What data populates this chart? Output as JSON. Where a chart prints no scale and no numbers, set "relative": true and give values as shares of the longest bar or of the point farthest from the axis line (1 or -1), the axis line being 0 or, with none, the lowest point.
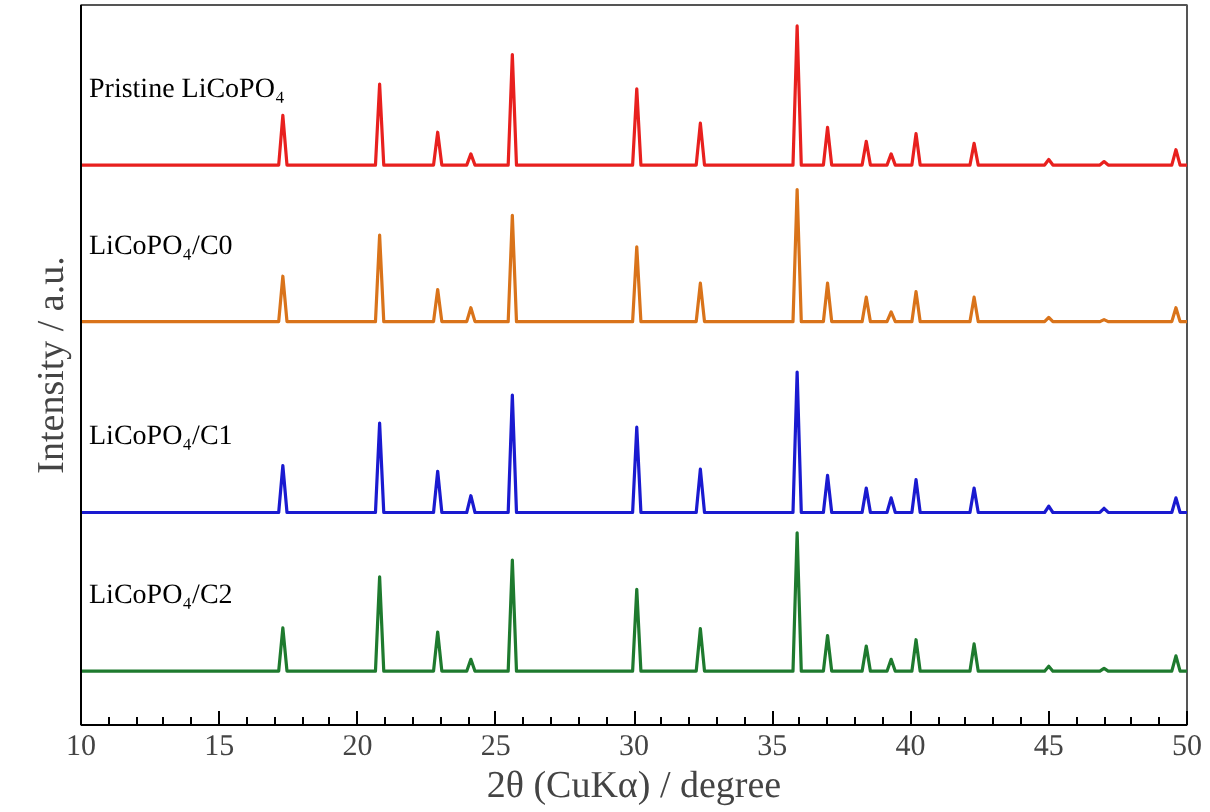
{
  "chart_data": {
    "type": "line",
    "relative": true,
    "xlabel": "2θ (CuKα) / degree",
    "ylabel": "Intensity / a.u.",
    "xlim": [
      10,
      50
    ],
    "xticks": [
      10,
      15,
      20,
      25,
      30,
      35,
      40,
      45,
      50
    ],
    "grid": false,
    "legend": false,
    "x": [
      10,
      17.15,
      17.3,
      17.45,
      20.65,
      20.8,
      20.95,
      22.75,
      22.9,
      23.05,
      23.95,
      24.1,
      24.25,
      25.45,
      25.6,
      25.75,
      29.95,
      30.1,
      30.25,
      32.25,
      32.4,
      32.55,
      35.75,
      35.9,
      36.05,
      36.85,
      37.0,
      37.15,
      38.25,
      38.4,
      38.55,
      39.15,
      39.3,
      39.45,
      40.05,
      40.2,
      40.35,
      42.15,
      42.3,
      42.45,
      44.85,
      45.0,
      45.15,
      46.85,
      47.0,
      47.15,
      49.45,
      49.6,
      49.75,
      50
    ],
    "series": [
      {
        "name": "Pristine LiCoPO₄",
        "color": "#e8201e",
        "values": [
          0.801,
          0.801,
          0.872,
          0.801,
          0.801,
          0.917,
          0.801,
          0.801,
          0.848,
          0.801,
          0.801,
          0.817,
          0.801,
          0.801,
          0.959,
          0.801,
          0.801,
          0.91,
          0.801,
          0.801,
          0.861,
          0.801,
          0.801,
          1.0,
          0.801,
          0.801,
          0.855,
          0.801,
          0.801,
          0.835,
          0.801,
          0.801,
          0.817,
          0.801,
          0.801,
          0.846,
          0.801,
          0.801,
          0.832,
          0.801,
          0.801,
          0.809,
          0.801,
          0.801,
          0.806,
          0.801,
          0.801,
          0.823,
          0.801,
          0.801
        ]
      },
      {
        "name": "LiCoPO₄/C0",
        "color": "#d9731a",
        "values": [
          0.577,
          0.577,
          0.642,
          0.577,
          0.577,
          0.701,
          0.577,
          0.577,
          0.623,
          0.577,
          0.577,
          0.597,
          0.577,
          0.577,
          0.729,
          0.577,
          0.577,
          0.684,
          0.577,
          0.577,
          0.632,
          0.577,
          0.577,
          0.766,
          0.577,
          0.577,
          0.632,
          0.577,
          0.577,
          0.612,
          0.577,
          0.577,
          0.591,
          0.577,
          0.577,
          0.62,
          0.577,
          0.577,
          0.612,
          0.577,
          0.577,
          0.583,
          0.577,
          0.577,
          0.58,
          0.577,
          0.577,
          0.597,
          0.577,
          0.577
        ]
      },
      {
        "name": "LiCoPO₄/C1",
        "color": "#1a1ad0",
        "values": [
          0.304,
          0.304,
          0.371,
          0.304,
          0.304,
          0.432,
          0.304,
          0.304,
          0.363,
          0.304,
          0.304,
          0.328,
          0.304,
          0.304,
          0.472,
          0.304,
          0.304,
          0.426,
          0.304,
          0.304,
          0.366,
          0.304,
          0.304,
          0.505,
          0.304,
          0.304,
          0.357,
          0.304,
          0.304,
          0.339,
          0.304,
          0.304,
          0.325,
          0.304,
          0.304,
          0.351,
          0.304,
          0.304,
          0.339,
          0.304,
          0.304,
          0.313,
          0.304,
          0.304,
          0.31,
          0.304,
          0.304,
          0.325,
          0.304,
          0.304
        ]
      },
      {
        "name": "LiCoPO₄/C2",
        "color": "#1e7a2e",
        "values": [
          0.077,
          0.077,
          0.139,
          0.077,
          0.077,
          0.212,
          0.077,
          0.077,
          0.133,
          0.077,
          0.077,
          0.094,
          0.077,
          0.077,
          0.236,
          0.077,
          0.077,
          0.194,
          0.077,
          0.077,
          0.138,
          0.077,
          0.077,
          0.275,
          0.077,
          0.077,
          0.128,
          0.077,
          0.077,
          0.113,
          0.077,
          0.077,
          0.094,
          0.077,
          0.077,
          0.122,
          0.077,
          0.077,
          0.116,
          0.077,
          0.077,
          0.084,
          0.077,
          0.077,
          0.081,
          0.077,
          0.077,
          0.099,
          0.077,
          0.077
        ]
      }
    ]
  }
}
